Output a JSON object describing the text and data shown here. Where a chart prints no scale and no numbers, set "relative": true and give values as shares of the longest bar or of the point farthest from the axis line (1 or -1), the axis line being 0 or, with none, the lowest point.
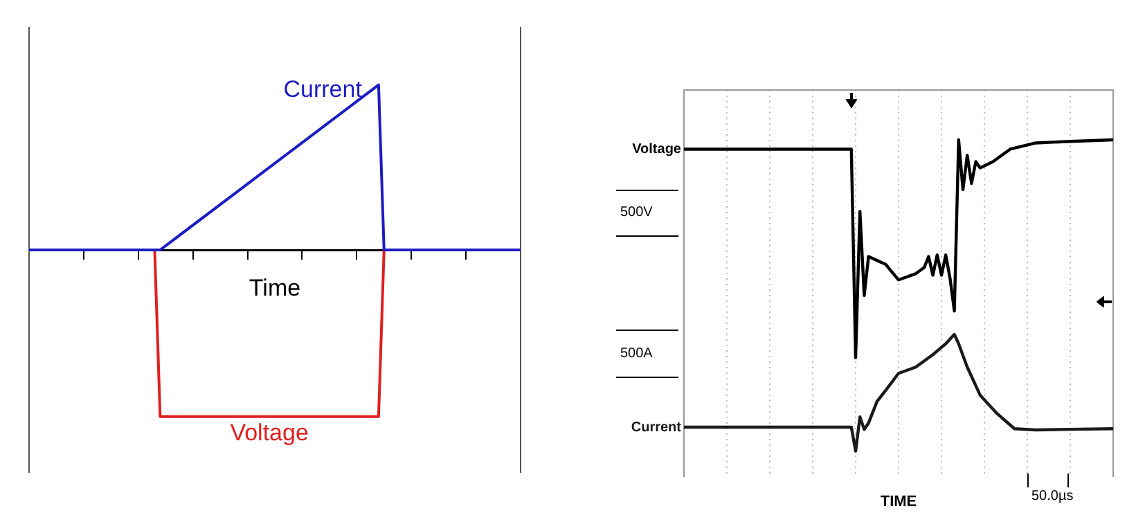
{
  "chart_data": [
    {
      "type": "line",
      "relative": true,
      "xlabel": "Time",
      "legend": false,
      "grid": false,
      "marker": "none",
      "line_style": "solid",
      "categories": [
        null,
        null,
        null,
        null,
        null,
        null,
        null,
        null,
        null,
        null,
        null,
        null,
        null,
        null,
        null,
        null,
        null,
        null,
        null,
        null,
        null,
        null,
        null,
        null,
        null,
        null,
        null,
        null,
        null,
        null,
        null,
        null,
        null,
        null,
        null,
        null,
        null,
        null,
        null,
        null,
        null,
        null,
        null,
        null,
        null,
        null,
        null,
        null,
        null,
        null,
        null,
        null,
        null,
        null,
        null,
        null,
        null,
        null,
        null,
        null,
        null,
        null,
        null,
        null,
        null,
        null,
        null,
        null,
        null,
        null,
        null,
        null,
        null,
        null,
        null,
        null,
        null,
        null,
        null,
        null,
        null,
        null,
        null,
        null,
        null,
        null,
        null,
        null,
        null,
        null,
        null
      ],
      "series": [
        {
          "name": "Current",
          "color": "#1c1cc4",
          "values": [
            0,
            null,
            null,
            null,
            null,
            null,
            null,
            null,
            null,
            null,
            null,
            null,
            null,
            null,
            null,
            null,
            null,
            null,
            null,
            null,
            null,
            null,
            null,
            null,
            0,
            null,
            null,
            null,
            null,
            null,
            null,
            null,
            null,
            null,
            null,
            null,
            null,
            null,
            null,
            null,
            null,
            null,
            null,
            null,
            null,
            null,
            null,
            null,
            null,
            null,
            null,
            null,
            null,
            null,
            null,
            null,
            null,
            null,
            null,
            null,
            null,
            null,
            null,
            null,
            0.99,
            0,
            null,
            null,
            null,
            null,
            null,
            null,
            null,
            null,
            null,
            null,
            null,
            null,
            null,
            null,
            null,
            null,
            null,
            null,
            null,
            null,
            null,
            null,
            null,
            null,
            0
          ]
        },
        {
          "name": "Voltage",
          "color": "#e02020",
          "values": [
            0,
            null,
            null,
            null,
            null,
            null,
            null,
            null,
            null,
            null,
            null,
            null,
            null,
            null,
            null,
            null,
            null,
            null,
            null,
            null,
            null,
            null,
            null,
            0,
            -1,
            null,
            null,
            null,
            null,
            null,
            null,
            null,
            null,
            null,
            null,
            null,
            null,
            null,
            null,
            null,
            null,
            null,
            null,
            null,
            null,
            null,
            null,
            null,
            null,
            null,
            null,
            null,
            null,
            null,
            null,
            null,
            null,
            null,
            null,
            null,
            null,
            null,
            null,
            null,
            -1,
            0,
            null,
            null,
            null,
            null,
            null,
            null,
            null,
            null,
            null,
            null,
            null,
            null,
            null,
            null,
            null,
            null,
            null,
            null,
            null,
            null,
            null,
            null,
            null,
            null,
            0
          ]
        }
      ]
    },
    {
      "type": "line",
      "relative": true,
      "xlabel": "TIME",
      "legend": false,
      "grid": "x",
      "marker": "none",
      "line_style": "solid",
      "annotations": [
        "500V",
        "500A",
        "50.0µs"
      ],
      "categories": [
        null,
        null,
        null,
        null,
        null,
        null,
        null,
        null,
        null,
        null,
        null,
        null,
        null,
        null,
        null,
        null,
        null,
        null,
        null,
        null,
        null,
        null,
        null,
        null,
        null,
        null,
        null,
        null,
        null,
        null,
        null,
        null,
        null,
        null,
        null,
        null,
        null,
        null,
        null,
        null,
        null,
        null,
        null,
        null,
        null,
        null,
        null,
        null,
        null,
        null,
        null,
        null,
        null,
        null,
        null,
        null,
        null,
        null,
        null,
        null,
        null,
        null,
        null,
        null,
        null,
        null,
        null,
        null,
        null,
        null,
        null,
        null,
        null,
        null,
        null,
        null,
        null,
        null,
        null,
        null,
        null,
        null,
        null,
        null,
        null,
        null,
        null,
        null,
        null,
        null,
        null,
        null,
        null,
        null,
        null,
        null,
        null,
        null,
        null,
        null,
        null
      ],
      "series": [
        {
          "name": "Voltage",
          "color": "#000000",
          "values": [
            0.97,
            null,
            null,
            null,
            null,
            null,
            null,
            null,
            null,
            null,
            null,
            null,
            null,
            null,
            null,
            null,
            null,
            null,
            null,
            null,
            null,
            null,
            null,
            null,
            null,
            null,
            null,
            null,
            null,
            null,
            null,
            null,
            null,
            null,
            null,
            null,
            null,
            null,
            null,
            0.97,
            0.3,
            0.77,
            0.5,
            0.625,
            null,
            null,
            null,
            0.6,
            null,
            null,
            0.55,
            null,
            null,
            null,
            0.57,
            null,
            0.59,
            0.625,
            0.565,
            0.63,
            0.565,
            0.63,
            0.555,
            0.45,
            1.0,
            0.84,
            0.95,
            0.86,
            0.93,
            0.91,
            null,
            null,
            0.93,
            null,
            null,
            null,
            0.97,
            null,
            null,
            null,
            null,
            null,
            0.99,
            null,
            null,
            null,
            null,
            null,
            null,
            null,
            0.995,
            null,
            null,
            null,
            null,
            null,
            null,
            null,
            null,
            null,
            1.0
          ]
        },
        {
          "name": "Current",
          "color": "#1a1a1a",
          "values": [
            0.077,
            null,
            null,
            null,
            null,
            null,
            null,
            null,
            null,
            null,
            null,
            null,
            null,
            null,
            null,
            null,
            null,
            null,
            null,
            null,
            null,
            null,
            null,
            null,
            null,
            null,
            null,
            null,
            null,
            null,
            null,
            null,
            null,
            null,
            null,
            null,
            null,
            null,
            null,
            0.077,
            0.0,
            0.11,
            0.07,
            0.09,
            null,
            0.16,
            null,
            0.195,
            null,
            null,
            0.25,
            null,
            null,
            null,
            0.27,
            null,
            null,
            null,
            0.31,
            null,
            null,
            0.345,
            null,
            0.375,
            0.345,
            null,
            0.27,
            null,
            null,
            0.18,
            null,
            null,
            null,
            0.12,
            null,
            null,
            null,
            0.072,
            null,
            null,
            null,
            null,
            0.068,
            null,
            null,
            null,
            null,
            null,
            null,
            null,
            0.07,
            null,
            null,
            null,
            null,
            null,
            null,
            null,
            null,
            null,
            0.072
          ]
        }
      ]
    }
  ]
}
